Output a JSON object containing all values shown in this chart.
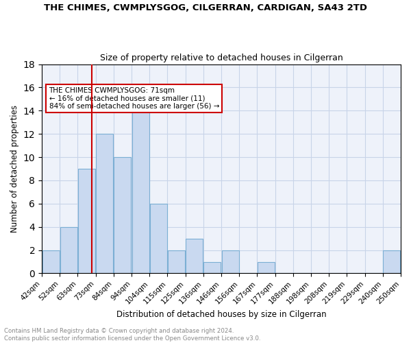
{
  "title": "THE CHIMES, CWMPLYSGOG, CILGERRAN, CARDIGAN, SA43 2TD",
  "subtitle": "Size of property relative to detached houses in Cilgerran",
  "xlabel": "Distribution of detached houses by size in Cilgerran",
  "ylabel": "Number of detached properties",
  "bar_color": "#c9d9f0",
  "bar_edge_color": "#7bafd4",
  "grid_color": "#c8d4e8",
  "background_color": "#eef2fa",
  "bin_labels": [
    "42sqm",
    "52sqm",
    "63sqm",
    "73sqm",
    "84sqm",
    "94sqm",
    "104sqm",
    "115sqm",
    "125sqm",
    "136sqm",
    "146sqm",
    "156sqm",
    "167sqm",
    "177sqm",
    "188sqm",
    "198sqm",
    "208sqm",
    "219sqm",
    "229sqm",
    "240sqm",
    "250sqm"
  ],
  "counts": [
    2,
    4,
    9,
    12,
    10,
    14,
    6,
    2,
    3,
    1,
    2,
    0,
    1,
    0,
    0,
    0,
    0,
    0,
    0,
    2
  ],
  "ylim": [
    0,
    18
  ],
  "yticks": [
    0,
    2,
    4,
    6,
    8,
    10,
    12,
    14,
    16,
    18
  ],
  "vline_color": "#cc0000",
  "annotation_text": "THE CHIMES CWMPLYSGOG: 71sqm\n← 16% of detached houses are smaller (11)\n84% of semi-detached houses are larger (56) →",
  "annotation_box_color": "#ffffff",
  "annotation_box_edge": "#cc0000",
  "footer_text": "Contains HM Land Registry data © Crown copyright and database right 2024.\nContains public sector information licensed under the Open Government Licence v3.0.",
  "n_bins": 20,
  "vline_bin_index": 2.9
}
